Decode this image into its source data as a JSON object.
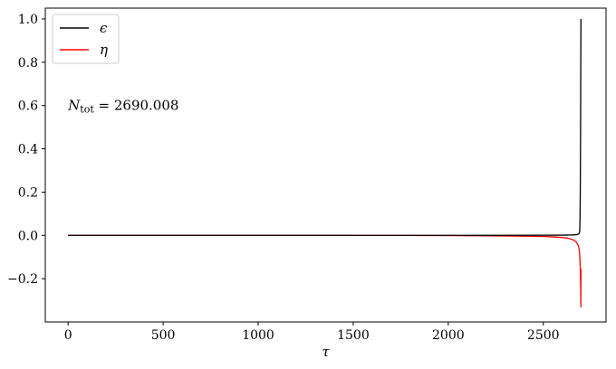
{
  "chart_data": {
    "type": "line",
    "title": "",
    "xlabel": "τ",
    "ylabel": "",
    "xlim": [
      -120,
      2830
    ],
    "ylim": [
      -0.4,
      1.05
    ],
    "xticks": [
      0,
      500,
      1000,
      1500,
      2000,
      2500
    ],
    "xtick_labels": [
      "0",
      "500",
      "1000",
      "1500",
      "2000",
      "2500"
    ],
    "yticks": [
      -0.2,
      0.0,
      0.2,
      0.4,
      0.6,
      0.8,
      1.0
    ],
    "ytick_labels": [
      "−0.2",
      "0.0",
      "0.2",
      "0.4",
      "0.6",
      "0.8",
      "1.0"
    ],
    "grid": false,
    "legend_position": "top-left",
    "annotation": {
      "symbol": "N",
      "subscript": "tot",
      "text": " = 2690.008",
      "x": 0,
      "y": 0.6
    },
    "series": [
      {
        "name": "ϵ",
        "color": "#000000",
        "x": [
          0,
          500,
          1000,
          1500,
          2000,
          2400,
          2600,
          2650,
          2670,
          2680,
          2685,
          2688,
          2690,
          2691,
          2692,
          2693,
          2694,
          2695,
          2696,
          2697,
          2698
        ],
        "y": [
          0.0,
          0.0,
          0.0,
          0.0,
          0.0,
          0.0003,
          0.001,
          0.002,
          0.003,
          0.004,
          0.006,
          0.008,
          0.013,
          0.02,
          0.035,
          0.07,
          0.14,
          0.27,
          0.48,
          0.75,
          1.0
        ]
      },
      {
        "name": "η",
        "color": "#ff0000",
        "x": [
          0,
          500,
          1000,
          1500,
          2000,
          2200,
          2400,
          2500,
          2550,
          2600,
          2630,
          2650,
          2660,
          2670,
          2675,
          2680,
          2685,
          2688,
          2690,
          2692,
          2694,
          2696,
          2697,
          2697.5,
          2698
        ],
        "y": [
          0.0,
          0.0,
          0.0,
          0.0,
          -0.001,
          -0.002,
          -0.004,
          -0.005,
          -0.007,
          -0.01,
          -0.013,
          -0.018,
          -0.022,
          -0.028,
          -0.033,
          -0.04,
          -0.05,
          -0.06,
          -0.075,
          -0.1,
          -0.14,
          -0.21,
          -0.27,
          -0.33,
          -0.155
        ]
      }
    ]
  }
}
